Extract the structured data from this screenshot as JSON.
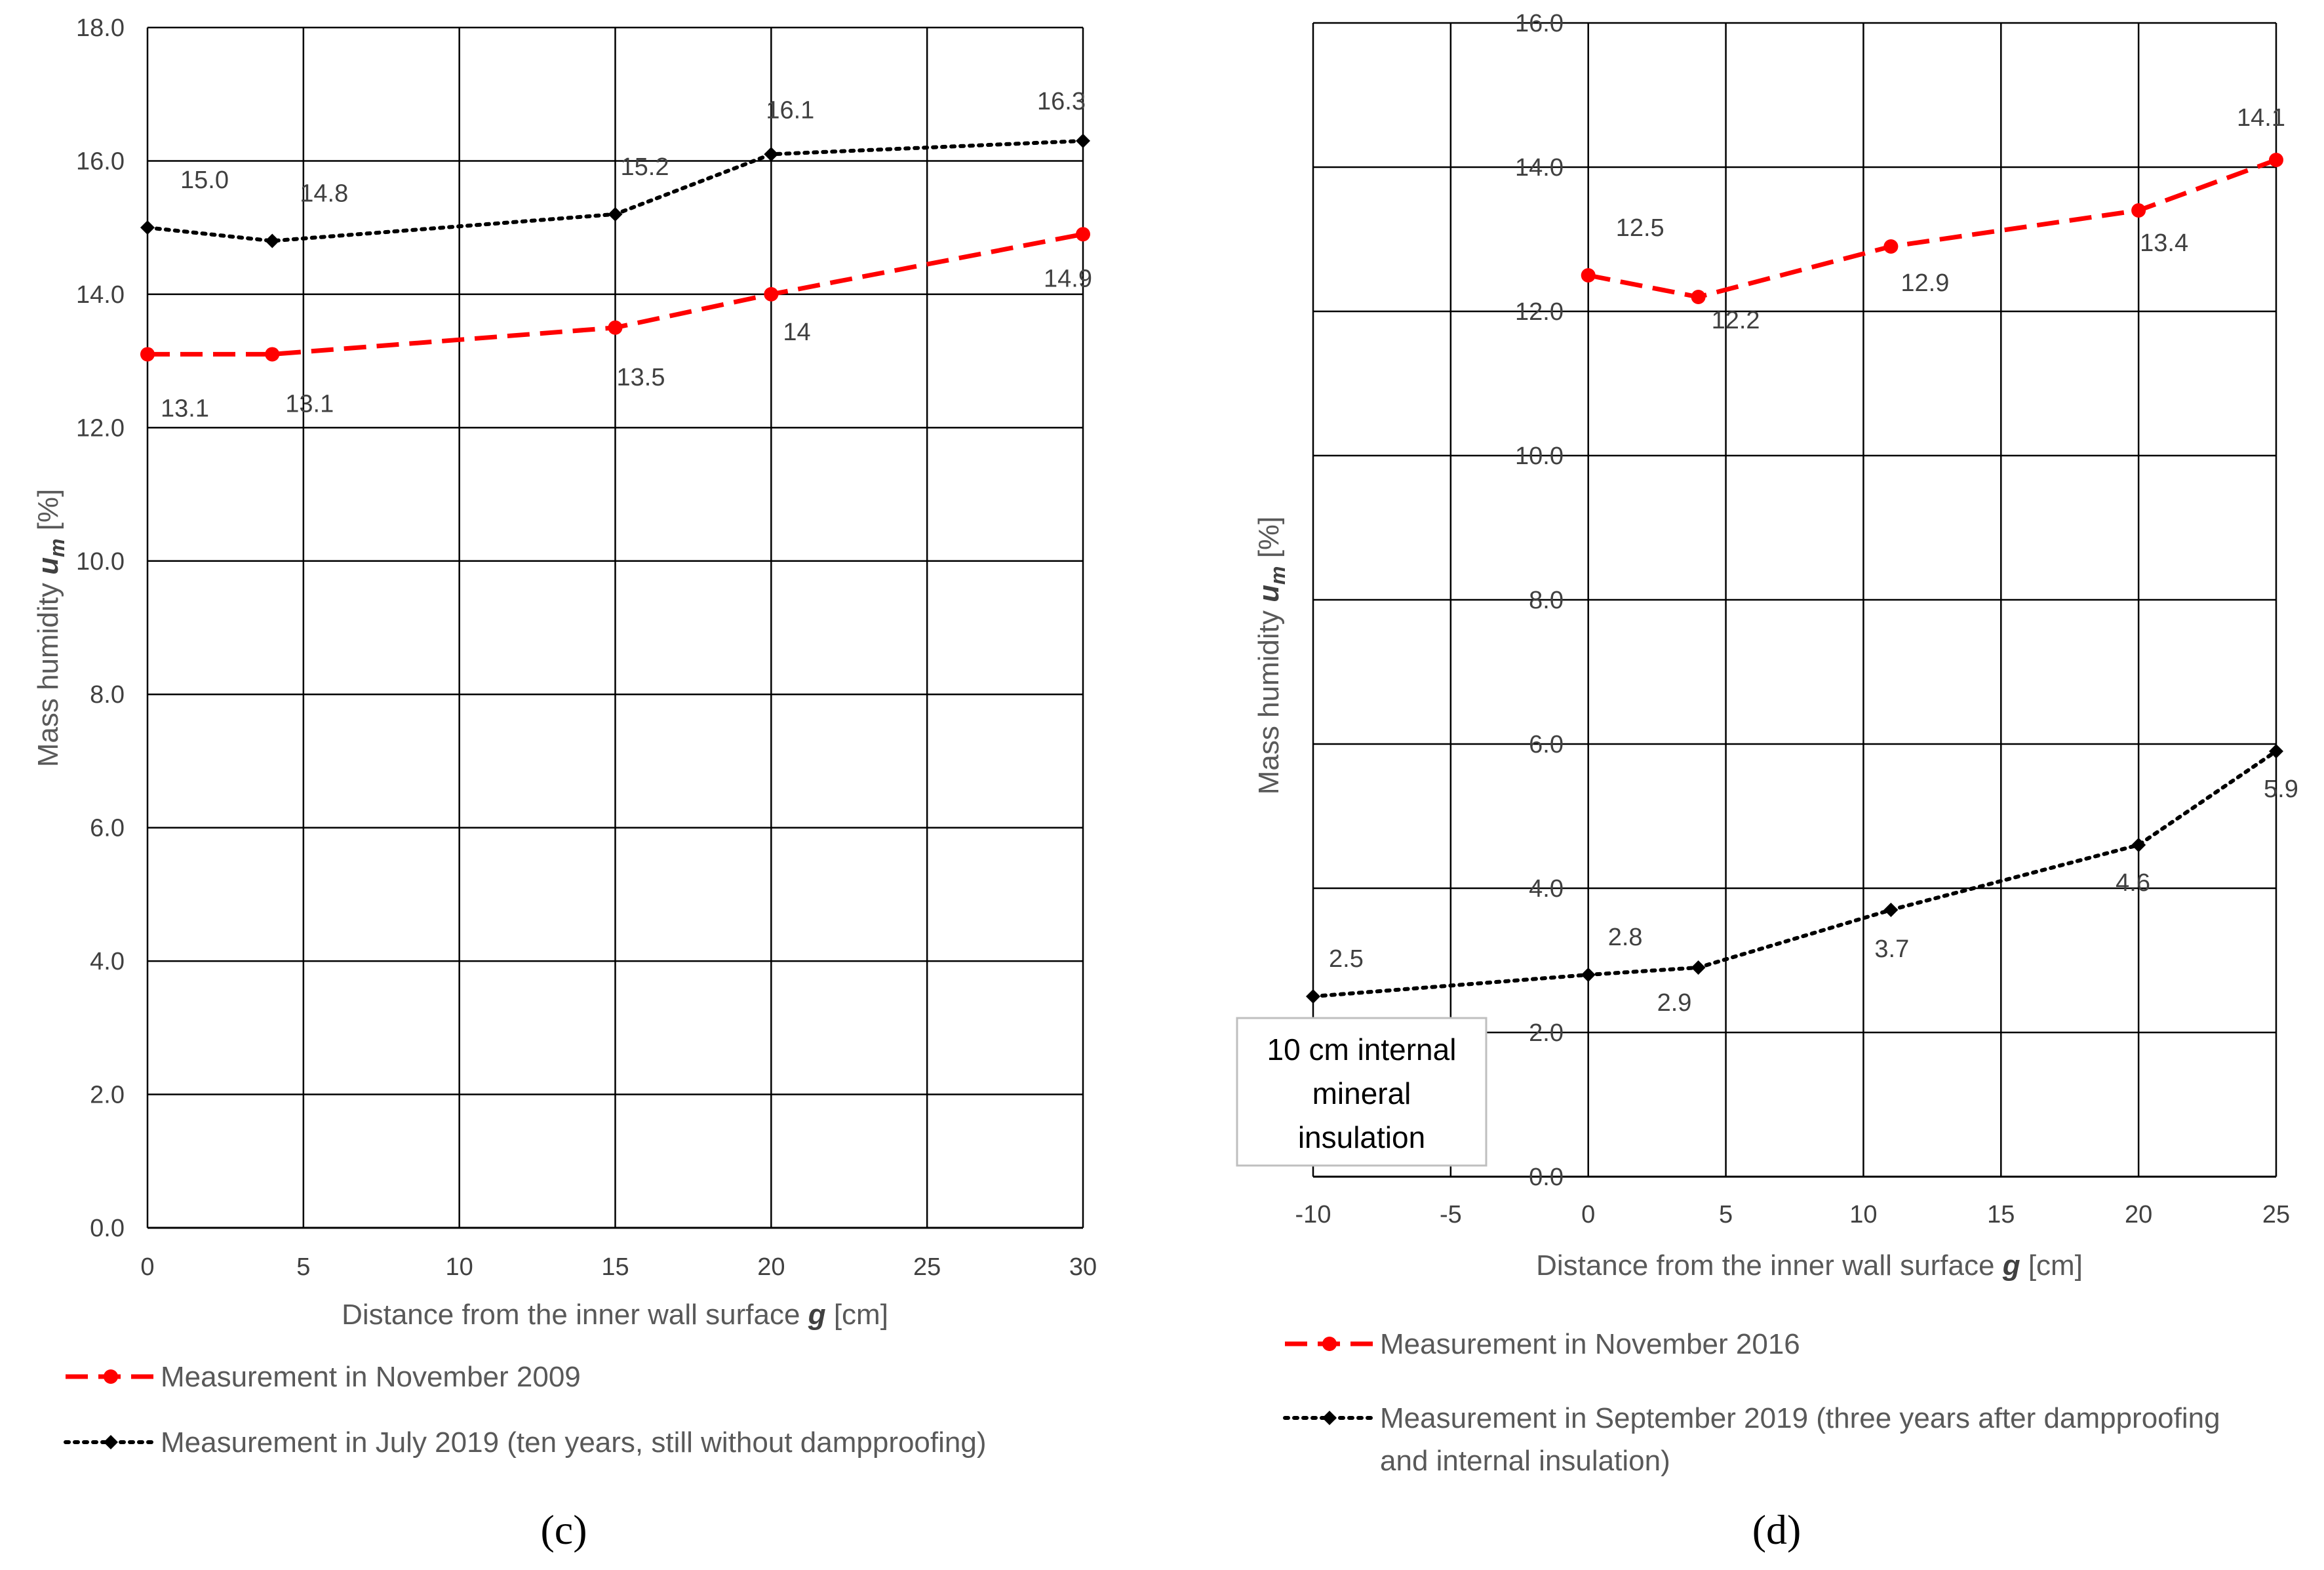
{
  "chart_data": [
    {
      "type": "line",
      "panel": "c",
      "categories": [
        0,
        4,
        15,
        20,
        30
      ],
      "x_ticks": [
        "0",
        "5",
        "10",
        "15",
        "20",
        "25",
        "30"
      ],
      "x_tick_values": [
        0,
        5,
        10,
        15,
        20,
        25,
        30
      ],
      "y_ticks": [
        "0.0",
        "2.0",
        "4.0",
        "6.0",
        "8.0",
        "10.0",
        "12.0",
        "14.0",
        "16.0",
        "18.0"
      ],
      "y_tick_values": [
        0,
        2,
        4,
        6,
        8,
        10,
        12,
        14,
        16,
        18
      ],
      "xlim": [
        0,
        30
      ],
      "ylim": [
        0,
        18
      ],
      "grid": true,
      "xlabel": "Distance from the inner wall surface g [cm]",
      "ylabel": "Mass humidity um [%]",
      "legend_position": "bottom",
      "panel_label": "(c)",
      "series": [
        {
          "name": "Measurement in November 2009",
          "color": "#ff0000",
          "style": "dashed",
          "marker": "circle",
          "x": [
            0,
            4,
            15,
            20,
            30
          ],
          "values": [
            13.1,
            13.1,
            13.5,
            14.0,
            14.9
          ],
          "labels": [
            "13.1",
            "13.1",
            "13.5",
            "14",
            "14.9"
          ]
        },
        {
          "name": "Measurement in July 2019 (ten years, still without dampproofing)",
          "color": "#000000",
          "style": "dotted",
          "marker": "diamond",
          "x": [
            0,
            4,
            15,
            20,
            30
          ],
          "values": [
            15.0,
            14.8,
            15.2,
            16.1,
            16.3
          ],
          "labels": [
            "15.0",
            "14.8",
            "15.2",
            "16.1",
            "16.3"
          ]
        }
      ]
    },
    {
      "type": "line",
      "panel": "d",
      "x_ticks": [
        "-10",
        "-5",
        "0",
        "5",
        "10",
        "15",
        "20",
        "25"
      ],
      "x_tick_values": [
        -10,
        -5,
        0,
        5,
        10,
        15,
        20,
        25
      ],
      "y_ticks": [
        "0.0",
        "2.0",
        "4.0",
        "6.0",
        "8.0",
        "10.0",
        "12.0",
        "14.0",
        "16.0"
      ],
      "y_tick_values": [
        0,
        2,
        4,
        6,
        8,
        10,
        12,
        14,
        16
      ],
      "xlim": [
        -10,
        25
      ],
      "ylim": [
        0,
        16
      ],
      "grid": true,
      "xlabel": "Distance from the inner wall surface g [cm]",
      "ylabel": "Mass humidity um [%]",
      "legend_position": "bottom",
      "panel_label": "(d)",
      "annotation": [
        "10 cm internal",
        "mineral",
        "insulation"
      ],
      "series": [
        {
          "name": "Measurement in November 2016",
          "color": "#ff0000",
          "style": "dashed",
          "marker": "circle",
          "x": [
            0,
            4,
            11,
            20,
            25
          ],
          "values": [
            12.5,
            12.2,
            12.9,
            13.4,
            14.1
          ],
          "labels": [
            "12.5",
            "12.2",
            "12.9",
            "13.4",
            "14.1"
          ]
        },
        {
          "name": "Measurement in September 2019 (three years after dampproofing and internal insulation)",
          "legend_lines": [
            "Measurement in September 2019 (three years after dampproofing",
            "and internal insulation)"
          ],
          "color": "#000000",
          "style": "dotted",
          "marker": "diamond",
          "x": [
            -10,
            0,
            4,
            11,
            20,
            25
          ],
          "values": [
            2.5,
            2.8,
            2.9,
            3.7,
            4.6,
            5.9
          ],
          "labels": [
            "2.5",
            "2.8",
            "2.9",
            "3.7",
            "4.6",
            "5.9"
          ]
        }
      ]
    }
  ],
  "ylabel_parts": {
    "prefix": "Mass humidity ",
    "var": "u",
    "sub": "m",
    "suffix": " [%]"
  },
  "xlabel_parts": {
    "prefix": "Distance from the inner wall surface ",
    "var": "g",
    "suffix": " [cm]"
  }
}
